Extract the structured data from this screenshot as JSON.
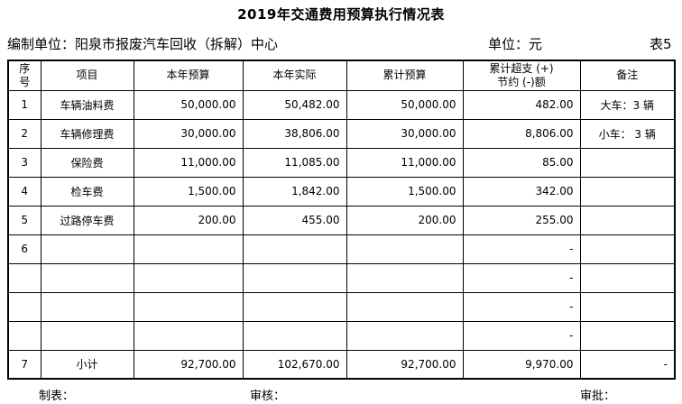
{
  "title": "2019年交通费用预算执行情况表",
  "meta": {
    "prepared_by": "编制单位：阳泉市报废汽车回收（拆解）中心",
    "unit": "单位：元",
    "sheet_no": "表5"
  },
  "table": {
    "headers": [
      "序号",
      "项目",
      "本年预算",
      "本年实际",
      "累计预算",
      "累计超支 (+)\n节约 (-)额",
      "备注"
    ],
    "column_types": [
      "center",
      "center",
      "num",
      "num",
      "num",
      "num",
      "remark"
    ],
    "rows": [
      {
        "cells": [
          "1",
          "车辆油料费",
          "50,000.00",
          "50,482.00",
          "50,000.00",
          "482.00",
          "大车：3  辆"
        ]
      },
      {
        "cells": [
          "2",
          "车辆修理费",
          "30,000.00",
          "38,806.00",
          "30,000.00",
          "8,806.00",
          "小车： 3  辆"
        ]
      },
      {
        "cells": [
          "3",
          "保险费",
          "11,000.00",
          "11,085.00",
          "11,000.00",
          "85.00",
          ""
        ]
      },
      {
        "cells": [
          "4",
          "检车费",
          "1,500.00",
          "1,842.00",
          "1,500.00",
          "342.00",
          ""
        ]
      },
      {
        "cells": [
          "5",
          "过路停车费",
          "200.00",
          "455.00",
          "200.00",
          "255.00",
          ""
        ]
      },
      {
        "cells": [
          "6",
          "",
          "",
          "",
          "",
          "-",
          ""
        ]
      },
      {
        "cells": [
          "",
          "",
          "",
          "",
          "",
          "-",
          ""
        ]
      },
      {
        "cells": [
          "",
          "",
          "",
          "",
          "",
          "-",
          ""
        ]
      },
      {
        "cells": [
          "",
          "",
          "",
          "",
          "",
          "-",
          ""
        ]
      },
      {
        "cells": [
          "7",
          "小计",
          "92,700.00",
          "102,670.00",
          "92,700.00",
          "9,970.00",
          "-"
        ]
      }
    ]
  },
  "footer": {
    "maker": "制表：",
    "reviewer": "审核：",
    "approver": "审批："
  },
  "colors": {
    "text": "#000000",
    "border": "#000000",
    "background": "#ffffff"
  }
}
